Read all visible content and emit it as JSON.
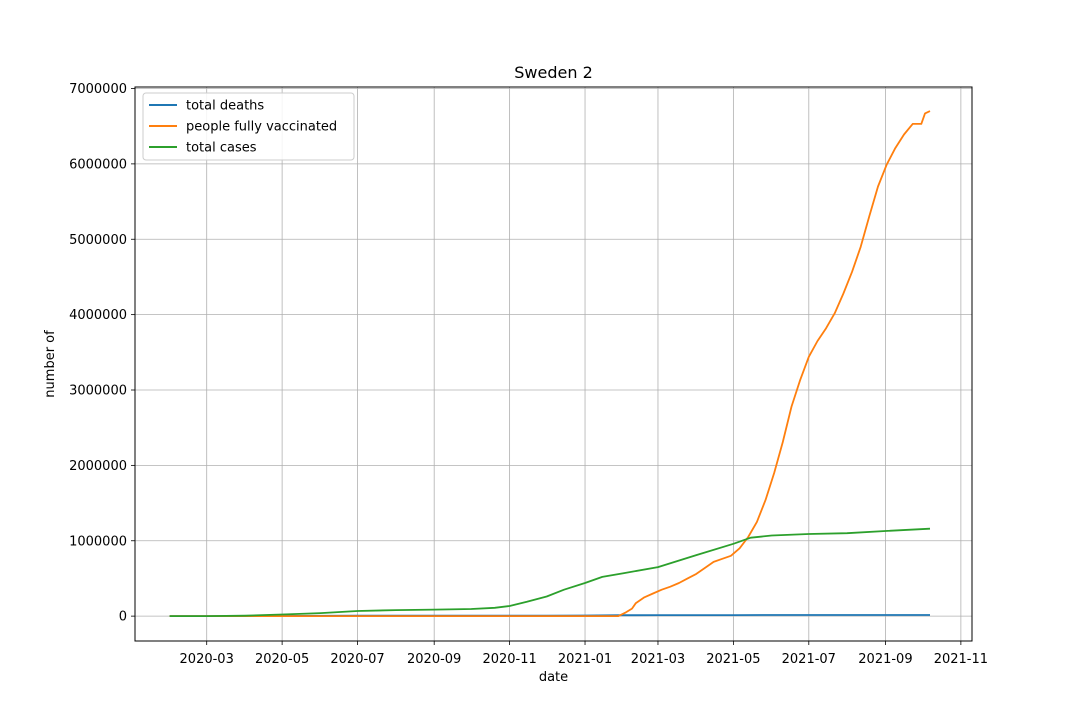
{
  "chart_data": {
    "type": "line",
    "title": "Sweden 2",
    "xlabel": "date",
    "ylabel": "number of",
    "xlim": [
      "2020-01-03",
      "2021-11-10"
    ],
    "ylim": [
      -330000,
      7020000
    ],
    "xticks": [
      "2020-03",
      "2020-05",
      "2020-07",
      "2020-09",
      "2020-11",
      "2021-01",
      "2021-03",
      "2021-05",
      "2021-07",
      "2021-09",
      "2021-11"
    ],
    "yticks": [
      "0",
      "1000000",
      "2000000",
      "3000000",
      "4000000",
      "5000000",
      "6000000",
      "7000000"
    ],
    "grid": true,
    "legend_position": "top-left",
    "series": [
      {
        "name": "total deaths",
        "color": "#1f77b4",
        "points": [
          [
            "2020-01-31",
            0
          ],
          [
            "2020-03-15",
            500
          ],
          [
            "2020-04-15",
            1500
          ],
          [
            "2020-05-15",
            3500
          ],
          [
            "2020-07-01",
            5400
          ],
          [
            "2020-09-01",
            5800
          ],
          [
            "2020-11-01",
            6000
          ],
          [
            "2020-12-01",
            7000
          ],
          [
            "2021-01-01",
            8700
          ],
          [
            "2021-02-01",
            12000
          ],
          [
            "2021-03-01",
            13000
          ],
          [
            "2021-04-01",
            13500
          ],
          [
            "2021-05-01",
            14200
          ],
          [
            "2021-06-01",
            14500
          ],
          [
            "2021-07-01",
            14600
          ],
          [
            "2021-09-01",
            14800
          ],
          [
            "2021-10-07",
            14900
          ]
        ]
      },
      {
        "name": "people fully vaccinated",
        "color": "#ff7f0e",
        "points": [
          [
            "2020-01-31",
            0
          ],
          [
            "2021-01-28",
            0
          ],
          [
            "2021-02-03",
            50000
          ],
          [
            "2021-02-08",
            100000
          ],
          [
            "2021-02-11",
            170000
          ],
          [
            "2021-02-18",
            250000
          ],
          [
            "2021-02-25",
            300000
          ],
          [
            "2021-03-04",
            350000
          ],
          [
            "2021-03-11",
            390000
          ],
          [
            "2021-03-18",
            440000
          ],
          [
            "2021-03-25",
            500000
          ],
          [
            "2021-04-01",
            560000
          ],
          [
            "2021-04-08",
            640000
          ],
          [
            "2021-04-15",
            720000
          ],
          [
            "2021-04-22",
            760000
          ],
          [
            "2021-04-29",
            800000
          ],
          [
            "2021-05-06",
            900000
          ],
          [
            "2021-05-13",
            1050000
          ],
          [
            "2021-05-20",
            1250000
          ],
          [
            "2021-05-27",
            1540000
          ],
          [
            "2021-06-03",
            1900000
          ],
          [
            "2021-06-10",
            2310000
          ],
          [
            "2021-06-17",
            2780000
          ],
          [
            "2021-06-24",
            3130000
          ],
          [
            "2021-07-01",
            3440000
          ],
          [
            "2021-07-08",
            3650000
          ],
          [
            "2021-07-15",
            3820000
          ],
          [
            "2021-07-22",
            4020000
          ],
          [
            "2021-07-29",
            4280000
          ],
          [
            "2021-08-05",
            4570000
          ],
          [
            "2021-08-12",
            4900000
          ],
          [
            "2021-08-19",
            5310000
          ],
          [
            "2021-08-26",
            5700000
          ],
          [
            "2021-09-02",
            5990000
          ],
          [
            "2021-09-09",
            6210000
          ],
          [
            "2021-09-16",
            6390000
          ],
          [
            "2021-09-23",
            6530000
          ],
          [
            "2021-09-30",
            6530000
          ],
          [
            "2021-10-03",
            6670000
          ],
          [
            "2021-10-07",
            6700000
          ]
        ]
      },
      {
        "name": "total cases",
        "color": "#2ca02c",
        "points": [
          [
            "2020-01-31",
            1
          ],
          [
            "2020-03-01",
            1000
          ],
          [
            "2020-04-01",
            6000
          ],
          [
            "2020-05-01",
            22000
          ],
          [
            "2020-06-01",
            40000
          ],
          [
            "2020-07-01",
            68000
          ],
          [
            "2020-08-01",
            80000
          ],
          [
            "2020-09-01",
            86000
          ],
          [
            "2020-10-01",
            95000
          ],
          [
            "2020-10-20",
            110000
          ],
          [
            "2020-11-01",
            135000
          ],
          [
            "2020-11-15",
            190000
          ],
          [
            "2020-12-01",
            260000
          ],
          [
            "2020-12-15",
            350000
          ],
          [
            "2021-01-01",
            440000
          ],
          [
            "2021-01-15",
            520000
          ],
          [
            "2021-02-01",
            570000
          ],
          [
            "2021-03-01",
            650000
          ],
          [
            "2021-04-01",
            810000
          ],
          [
            "2021-05-01",
            960000
          ],
          [
            "2021-05-15",
            1040000
          ],
          [
            "2021-06-01",
            1070000
          ],
          [
            "2021-07-01",
            1090000
          ],
          [
            "2021-08-01",
            1100000
          ],
          [
            "2021-09-01",
            1130000
          ],
          [
            "2021-10-07",
            1160000
          ]
        ]
      }
    ]
  }
}
